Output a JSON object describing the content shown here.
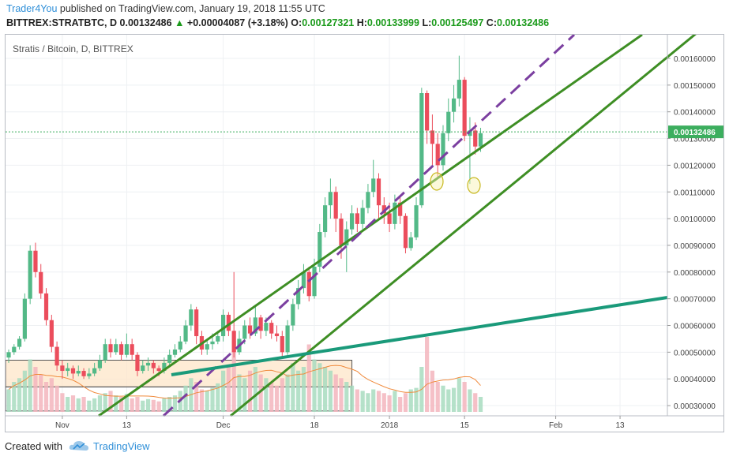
{
  "header": {
    "publisher": "Trader4You",
    "published_text": "published on TradingView.com, January 19, 2018 11:55 UTC",
    "symbol": "BITTREX:STRATBTC, D",
    "last": "0.00132486",
    "change": "+0.00004087 (+3.18%)",
    "o_label": "O:",
    "o_value": "0.00127321",
    "h_label": "H:",
    "h_value": "0.00133999",
    "l_label": "L:",
    "l_value": "0.00125497",
    "c_label": "C:",
    "c_value": "0.00132486"
  },
  "footer": {
    "created_with": "Created with",
    "brand": "TradingView"
  },
  "colors": {
    "up": "#53b987",
    "down": "#eb4d5c",
    "channel": "#3e8e24",
    "midline": "#7b3fa0",
    "support": "#1a9a7a",
    "last_price_bg": "#3cae5e"
  },
  "chart_data": {
    "type": "candlestick",
    "title": "Stratis / Bitcoin, D, BITTREX",
    "ylim": [
      0.00025,
      0.00165
    ],
    "y_ticks": [
      "0.00030000",
      "0.00040000",
      "0.00050000",
      "0.00060000",
      "0.00070000",
      "0.00080000",
      "0.00090000",
      "0.00100000",
      "0.00110000",
      "0.00120000",
      "0.00130000",
      "0.00140000",
      "0.00150000",
      "0.00160000"
    ],
    "x_ticks": [
      {
        "label": "Nov",
        "day": 10
      },
      {
        "label": "13",
        "day": 22
      },
      {
        "label": "Dec",
        "day": 40
      },
      {
        "label": "18",
        "day": 57
      },
      {
        "label": "2018",
        "day": 71
      },
      {
        "label": "15",
        "day": 85
      },
      {
        "label": "Feb",
        "day": 102
      },
      {
        "label": "13",
        "day": 114
      }
    ],
    "last_price": "0.00132486",
    "last_price_value": 0.00132486,
    "candles": [
      [
        0.00048,
        0.0005,
        0.00051,
        0.00046
      ],
      [
        0.0005,
        0.00052,
        0.00053,
        0.00049
      ],
      [
        0.00052,
        0.00055,
        0.00056,
        0.00051
      ],
      [
        0.00055,
        0.0007,
        0.00072,
        0.00054
      ],
      [
        0.0007,
        0.00088,
        0.0009,
        0.00068
      ],
      [
        0.00088,
        0.0008,
        0.00091,
        0.00078
      ],
      [
        0.0008,
        0.00072,
        0.00083,
        0.0007
      ],
      [
        0.00072,
        0.00062,
        0.00074,
        0.0006
      ],
      [
        0.00062,
        0.00052,
        0.00064,
        0.0005
      ],
      [
        0.00052,
        0.00045,
        0.00054,
        0.00043
      ],
      [
        0.00045,
        0.00043,
        0.00047,
        0.0004
      ],
      [
        0.00043,
        0.00044,
        0.00046,
        0.00041
      ],
      [
        0.00044,
        0.00042,
        0.00045,
        0.0004
      ],
      [
        0.00042,
        0.00043,
        0.00045,
        0.00041
      ],
      [
        0.00043,
        0.00041,
        0.00044,
        0.0004
      ],
      [
        0.00041,
        0.00042,
        0.00044,
        0.0004
      ],
      [
        0.00042,
        0.00044,
        0.00046,
        0.00041
      ],
      [
        0.00044,
        0.00047,
        0.00049,
        0.00043
      ],
      [
        0.00047,
        0.00053,
        0.00055,
        0.00046
      ],
      [
        0.00053,
        0.0005,
        0.00055,
        0.00048
      ],
      [
        0.0005,
        0.00053,
        0.00055,
        0.00049
      ],
      [
        0.00053,
        0.00049,
        0.00054,
        0.00047
      ],
      [
        0.00049,
        0.00053,
        0.00057,
        0.00048
      ],
      [
        0.00053,
        0.00049,
        0.00055,
        0.00047
      ],
      [
        0.00049,
        0.00043,
        0.0005,
        0.00041
      ],
      [
        0.00043,
        0.00045,
        0.00047,
        0.00042
      ],
      [
        0.00045,
        0.00046,
        0.00048,
        0.00043
      ],
      [
        0.00046,
        0.00044,
        0.00047,
        0.00042
      ],
      [
        0.00044,
        0.00043,
        0.00045,
        0.00041
      ],
      [
        0.00043,
        0.00046,
        0.00048,
        0.00042
      ],
      [
        0.00046,
        0.00049,
        0.00051,
        0.00045
      ],
      [
        0.00049,
        0.00051,
        0.00053,
        0.00048
      ],
      [
        0.00051,
        0.00054,
        0.00056,
        0.0005
      ],
      [
        0.00054,
        0.0006,
        0.00062,
        0.00053
      ],
      [
        0.0006,
        0.00066,
        0.00068,
        0.00058
      ],
      [
        0.00066,
        0.00056,
        0.00067,
        0.00053
      ],
      [
        0.00056,
        0.00051,
        0.00058,
        0.00049
      ],
      [
        0.00051,
        0.00053,
        0.00055,
        0.00049
      ],
      [
        0.00053,
        0.00054,
        0.00057,
        0.00051
      ],
      [
        0.00054,
        0.00056,
        0.00058,
        0.00053
      ],
      [
        0.00056,
        0.00064,
        0.00066,
        0.00054
      ],
      [
        0.00064,
        0.00058,
        0.00065,
        0.00056
      ],
      [
        0.00058,
        0.0005,
        0.0008,
        0.00048
      ],
      [
        0.0005,
        0.00055,
        0.00058,
        0.00049
      ],
      [
        0.00055,
        0.0006,
        0.00062,
        0.00053
      ],
      [
        0.0006,
        0.00057,
        0.00063,
        0.00055
      ],
      [
        0.00057,
        0.00063,
        0.00067,
        0.00056
      ],
      [
        0.00063,
        0.00058,
        0.00064,
        0.00055
      ],
      [
        0.00058,
        0.00061,
        0.00063,
        0.00056
      ],
      [
        0.00061,
        0.00057,
        0.00062,
        0.00055
      ],
      [
        0.00057,
        0.00056,
        0.0006,
        0.00054
      ],
      [
        0.00056,
        0.0005,
        0.00058,
        0.00048
      ],
      [
        0.0005,
        0.0006,
        0.00062,
        0.00049
      ],
      [
        0.0006,
        0.00068,
        0.0007,
        0.00058
      ],
      [
        0.00068,
        0.00074,
        0.00077,
        0.00066
      ],
      [
        0.00074,
        0.0008,
        0.00083,
        0.00072
      ],
      [
        0.0008,
        0.00071,
        0.00082,
        0.00069
      ],
      [
        0.00071,
        0.00082,
        0.00085,
        0.0007
      ],
      [
        0.00082,
        0.00095,
        0.00098,
        0.0008
      ],
      [
        0.00095,
        0.00105,
        0.00108,
        0.00093
      ],
      [
        0.00105,
        0.0011,
        0.00115,
        0.001
      ],
      [
        0.0011,
        0.001,
        0.00112,
        0.00095
      ],
      [
        0.001,
        0.0009,
        0.00102,
        0.00085
      ],
      [
        0.0009,
        0.00096,
        0.00099,
        0.0008
      ],
      [
        0.00096,
        0.00102,
        0.00105,
        0.00094
      ],
      [
        0.00102,
        0.00098,
        0.00104,
        0.00095
      ],
      [
        0.00098,
        0.00104,
        0.00107,
        0.00096
      ],
      [
        0.00104,
        0.0011,
        0.00113,
        0.00102
      ],
      [
        0.0011,
        0.00115,
        0.00122,
        0.00108
      ],
      [
        0.00115,
        0.00105,
        0.00117,
        0.001
      ],
      [
        0.00105,
        0.00102,
        0.00108,
        0.00098
      ],
      [
        0.00102,
        0.00098,
        0.00106,
        0.00095
      ],
      [
        0.00098,
        0.00106,
        0.00109,
        0.00096
      ],
      [
        0.00106,
        0.00101,
        0.00108,
        0.00098
      ],
      [
        0.00101,
        0.00089,
        0.00102,
        0.00087
      ],
      [
        0.00089,
        0.00093,
        0.00095,
        0.00088
      ],
      [
        0.00093,
        0.00105,
        0.00108,
        0.00092
      ],
      [
        0.00105,
        0.00147,
        0.00149,
        0.00104
      ],
      [
        0.00147,
        0.00133,
        0.00148,
        0.00128
      ],
      [
        0.00133,
        0.00128,
        0.00139,
        0.0012
      ],
      [
        0.00128,
        0.0012,
        0.00132,
        0.00115
      ],
      [
        0.0012,
        0.00132,
        0.00135,
        0.00118
      ],
      [
        0.00132,
        0.0014,
        0.00145,
        0.00129
      ],
      [
        0.0014,
        0.00145,
        0.0015,
        0.00136
      ],
      [
        0.00145,
        0.00152,
        0.00161,
        0.00142
      ],
      [
        0.00152,
        0.00131,
        0.00153,
        0.00129
      ],
      [
        0.00131,
        0.00133,
        0.00138,
        0.00113
      ],
      [
        0.00133,
        0.00127,
        0.00136,
        0.00124
      ],
      [
        0.00127,
        0.00132,
        0.00134,
        0.00125
      ]
    ],
    "volume": [
      0.3,
      0.4,
      0.45,
      0.55,
      0.7,
      0.6,
      0.5,
      0.4,
      0.45,
      0.35,
      0.25,
      0.2,
      0.22,
      0.18,
      0.2,
      0.15,
      0.18,
      0.22,
      0.25,
      0.28,
      0.22,
      0.2,
      0.24,
      0.18,
      0.2,
      0.15,
      0.17,
      0.16,
      0.14,
      0.18,
      0.2,
      0.22,
      0.28,
      0.35,
      0.45,
      0.4,
      0.3,
      0.28,
      0.32,
      0.38,
      0.55,
      0.6,
      0.95,
      0.5,
      0.45,
      0.55,
      0.6,
      0.5,
      0.45,
      0.4,
      0.35,
      0.45,
      0.5,
      0.65,
      0.55,
      0.6,
      0.9,
      0.7,
      0.65,
      0.6,
      0.55,
      0.5,
      0.45,
      0.4,
      0.35,
      0.3,
      0.28,
      0.25,
      0.3,
      0.28,
      0.25,
      0.22,
      0.28,
      0.2,
      0.25,
      0.3,
      0.32,
      0.6,
      1.0,
      0.55,
      0.4,
      0.35,
      0.3,
      0.32,
      0.45,
      0.4,
      0.3,
      0.25,
      0.2
    ]
  }
}
